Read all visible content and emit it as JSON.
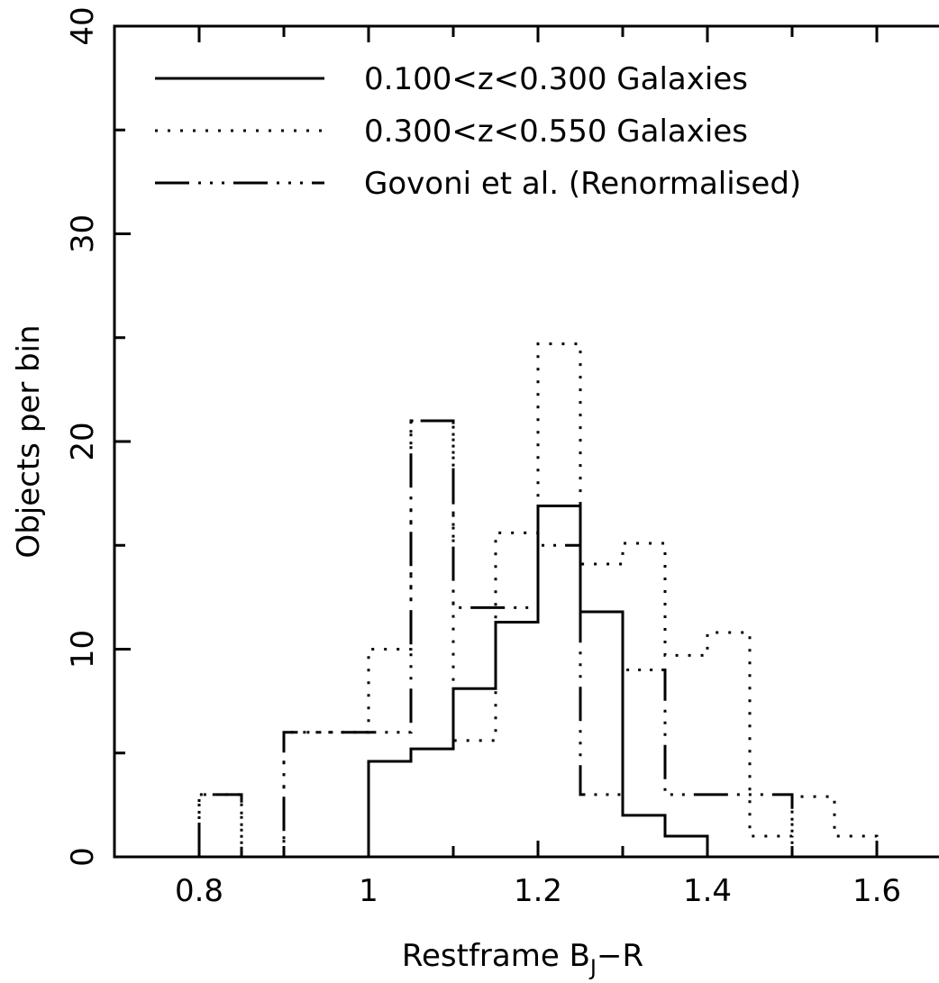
{
  "chart_data": {
    "type": "histogram",
    "title": "",
    "xlabel": {
      "main": "Restframe B",
      "sub": "J",
      "tail": "−R"
    },
    "ylabel": "Objects per bin",
    "xlim": [
      0.7,
      1.7
    ],
    "ylim": [
      0,
      40
    ],
    "xticks": [
      0.8,
      1,
      1.2,
      1.4,
      1.6
    ],
    "xtick_labels": [
      "0.8",
      "1",
      "1.2",
      "1.4",
      "1.6"
    ],
    "yticks": [
      0,
      10,
      20,
      30,
      40
    ],
    "ytick_labels": [
      "0",
      "10",
      "20",
      "30",
      "40"
    ],
    "legend_position": "top-left",
    "series": [
      {
        "name": "0.100<z<0.300 Galaxies",
        "style": "solid",
        "bin_edges": [
          1.0,
          1.05,
          1.1,
          1.15,
          1.2,
          1.25,
          1.3,
          1.35,
          1.4
        ],
        "values": [
          4.6,
          5.2,
          8.1,
          11.3,
          16.9,
          11.8,
          2.0,
          1.0
        ]
      },
      {
        "name": "0.300<z<0.550 Galaxies",
        "style": "dotted",
        "bin_edges": [
          0.8,
          0.85,
          0.9,
          0.95,
          1.0,
          1.05,
          1.1,
          1.15,
          1.2,
          1.25,
          1.3,
          1.35,
          1.4,
          1.45,
          1.5,
          1.55,
          1.6
        ],
        "values": [
          3.0,
          0,
          6.0,
          6.0,
          10.0,
          21.0,
          5.6,
          15.6,
          24.7,
          14.1,
          15.1,
          9.7,
          10.8,
          1.0,
          2.9,
          1.0
        ]
      },
      {
        "name": "Govoni et al. (Renormalised)",
        "style": "dash-dot",
        "bin_edges": [
          0.8,
          0.85,
          0.9,
          0.95,
          1.0,
          1.05,
          1.1,
          1.15,
          1.2,
          1.25,
          1.3,
          1.35,
          1.4,
          1.45,
          1.5
        ],
        "values": [
          3.0,
          0,
          6.0,
          6.0,
          6.0,
          21.0,
          12.0,
          12.0,
          15.0,
          3.0,
          9.0,
          3.0,
          3.0,
          3.0
        ]
      }
    ]
  }
}
